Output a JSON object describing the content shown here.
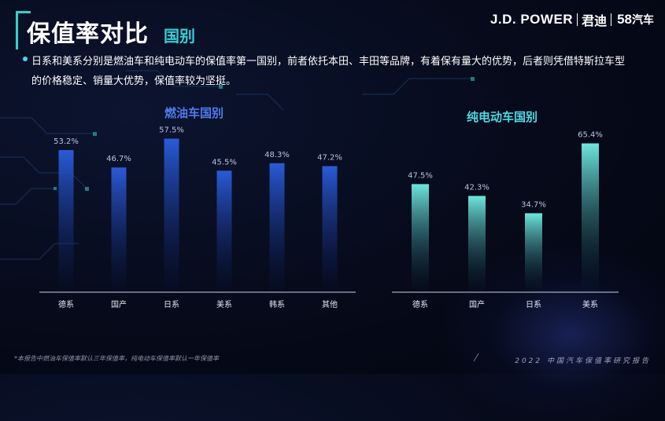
{
  "title": "保值率对比",
  "title_tag": "国别",
  "logo": {
    "brand": "J.D. POWER",
    "partner1": "君迪",
    "partner2_num": "58",
    "partner2_text": "汽车"
  },
  "description": "日系和美系分别是燃油车和纯电动车的保值率第一国别，前者依托本田、丰田等品牌，有着保有量大的优势，后者则凭借特斯拉车型的价格稳定、销量大优势，保值率较为坚挺。",
  "footnote": "*本报告中燃油车保值率默认三年保值率，纯电动车保值率默认一年保值率",
  "footer": "2022 中国汽车保值率研究报告",
  "colors": {
    "accent": "#2fd3c8",
    "fuel_bar": "#2a5bd7",
    "ev_bar": "#6ee6dc",
    "fuel_title": "#4f7bea",
    "ev_title": "#4fd8e0"
  },
  "chart_data": [
    {
      "type": "bar",
      "title": "燃油车国别",
      "categories": [
        "德系",
        "国产",
        "日系",
        "美系",
        "韩系",
        "其他"
      ],
      "values": [
        53.2,
        46.7,
        57.5,
        45.5,
        48.3,
        47.2
      ],
      "labels": [
        "53.2%",
        "46.7%",
        "57.5%",
        "45.5%",
        "48.3%",
        "47.2%"
      ],
      "unit": "%",
      "ylim": [
        0,
        60
      ],
      "grid": false,
      "legend": "none"
    },
    {
      "type": "bar",
      "title": "纯电动车国别",
      "categories": [
        "德系",
        "国产",
        "日系",
        "美系"
      ],
      "values": [
        47.5,
        42.3,
        34.7,
        65.4
      ],
      "labels": [
        "47.5%",
        "42.3%",
        "34.7%",
        "65.4%"
      ],
      "unit": "%",
      "ylim": [
        0,
        68
      ],
      "grid": false,
      "legend": "none"
    }
  ]
}
